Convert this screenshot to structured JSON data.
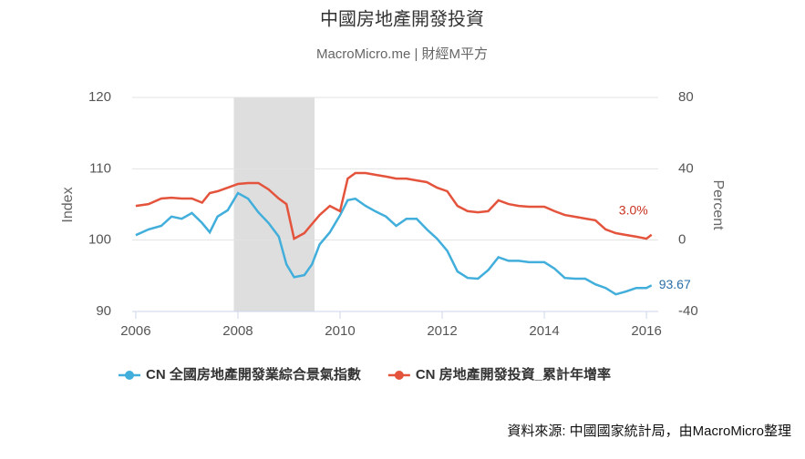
{
  "chart_data": {
    "type": "line",
    "title": "中國房地產開發投資",
    "subtitle": "MacroMicro.me | 財經M平方",
    "y_label": "Index",
    "y2_label": "Percent",
    "source": "資料來源: 中國國家統計局，由MacroMicro整理",
    "x": [
      2006.0,
      2006.25,
      2006.5,
      2006.7,
      2006.9,
      2007.1,
      2007.3,
      2007.45,
      2007.6,
      2007.8,
      2008.0,
      2008.2,
      2008.4,
      2008.6,
      2008.8,
      2008.95,
      2009.1,
      2009.3,
      2009.45,
      2009.6,
      2009.8,
      2010.0,
      2010.15,
      2010.3,
      2010.5,
      2010.7,
      2010.9,
      2011.1,
      2011.3,
      2011.5,
      2011.7,
      2011.9,
      2012.1,
      2012.3,
      2012.5,
      2012.7,
      2012.9,
      2013.1,
      2013.3,
      2013.5,
      2013.7,
      2013.9,
      2014.0,
      2014.2,
      2014.4,
      2014.6,
      2014.8,
      2015.0,
      2015.2,
      2015.4,
      2015.6,
      2015.8,
      2016.0,
      2016.1
    ],
    "xlim": [
      2005.93,
      2016.23
    ],
    "xticks": [
      2006,
      2008,
      2010,
      2012,
      2014,
      2016
    ],
    "ylim": [
      90,
      120
    ],
    "yticks": [
      90,
      100,
      110,
      120
    ],
    "y2lim": [
      -40,
      80
    ],
    "y2ticks": [
      -40,
      0,
      40,
      80
    ],
    "grid": true,
    "shaded_ranges": [
      [
        2007.92,
        2009.5
      ]
    ],
    "shade_color": "#dedede",
    "legend": "bottom",
    "series": [
      {
        "name": "CN 全國房地產開發業綜合景氣指數",
        "color": "#41aedb",
        "label_color": "#2a6fa8",
        "values": [
          100.7,
          101.5,
          102,
          103.3,
          103,
          103.8,
          102.4,
          101.1,
          103.3,
          104.2,
          106.6,
          105.8,
          103.9,
          102.4,
          100.5,
          96.6,
          94.8,
          95.1,
          96.6,
          99.4,
          101.1,
          103.5,
          105.6,
          105.8,
          104.8,
          104.0,
          103.3,
          102,
          103,
          103,
          101.5,
          100.2,
          98.5,
          95.6,
          94.7,
          94.6,
          95.8,
          97.6,
          97.1,
          97.1,
          96.9,
          96.9,
          96.9,
          96,
          94.7,
          94.6,
          94.6,
          93.8,
          93.3,
          92.4,
          92.8,
          93.3,
          93.3,
          93.67
        ],
        "value_labels": [
          null,
          null,
          null,
          null,
          null,
          null,
          null,
          null,
          null,
          null,
          null,
          null,
          null,
          null,
          null,
          null,
          null,
          null,
          null,
          null,
          null,
          null,
          null,
          null,
          null,
          null,
          null,
          null,
          null,
          null,
          null,
          null,
          null,
          null,
          null,
          null,
          null,
          null,
          null,
          null,
          null,
          null,
          null,
          null,
          null,
          null,
          null,
          null,
          null,
          null,
          null,
          null,
          null,
          "93.67"
        ]
      },
      {
        "name": "CN 房地產開發投資_累計年增率",
        "color": "#e4533c",
        "label_color": "#c8321f",
        "axis": "y2",
        "values": [
          19.2,
          20.2,
          23.3,
          23.8,
          23.3,
          23.3,
          21.0,
          26.4,
          27.4,
          29.4,
          31.5,
          32,
          32,
          28.4,
          23.3,
          20.2,
          0.8,
          3.9,
          9,
          14.1,
          19.2,
          16.2,
          34.5,
          37.6,
          37.6,
          36.6,
          35.6,
          34.5,
          34.5,
          33.5,
          32.5,
          29.4,
          27.4,
          19.2,
          16.2,
          15.6,
          16.2,
          22.3,
          20.2,
          19.2,
          18.7,
          18.7,
          18.7,
          16.2,
          14.1,
          13.1,
          12.1,
          11.1,
          6,
          3.9,
          2.9,
          1.9,
          0.8,
          3.0
        ],
        "value_labels": [
          null,
          null,
          null,
          null,
          null,
          null,
          null,
          null,
          null,
          null,
          null,
          null,
          null,
          null,
          null,
          null,
          null,
          null,
          null,
          null,
          null,
          null,
          null,
          null,
          null,
          null,
          null,
          null,
          null,
          null,
          null,
          null,
          null,
          null,
          null,
          null,
          null,
          null,
          null,
          null,
          null,
          null,
          null,
          null,
          null,
          null,
          null,
          null,
          null,
          null,
          null,
          null,
          null,
          "3.0%"
        ]
      }
    ]
  }
}
